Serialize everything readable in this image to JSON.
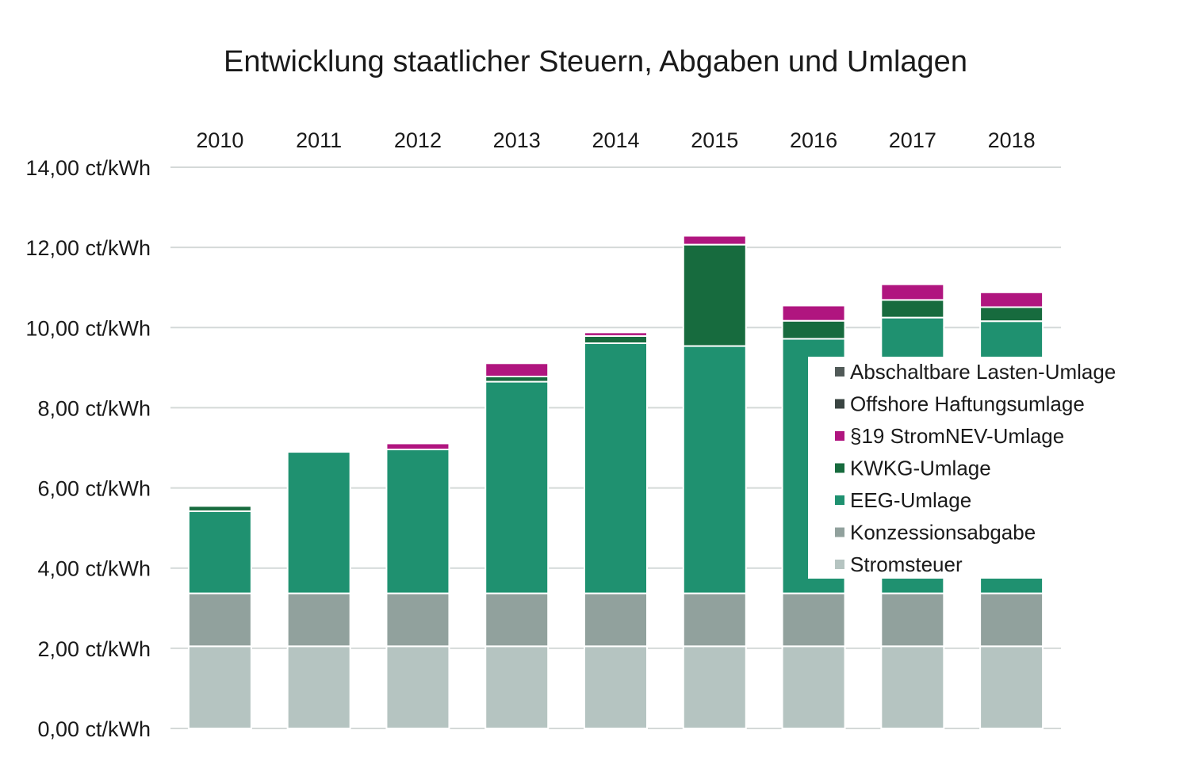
{
  "chart_data": {
    "type": "bar",
    "stacked": true,
    "title": "Entwicklung staatlicher Steuern, Abgaben und Umlagen",
    "xlabel": "",
    "ylabel": "",
    "x_axis_position": "top",
    "categories": [
      "2010",
      "2011",
      "2012",
      "2013",
      "2014",
      "2015",
      "2016",
      "2017",
      "2018"
    ],
    "ylim": [
      0,
      14
    ],
    "y_ticks": [
      0,
      2,
      4,
      6,
      8,
      10,
      12,
      14
    ],
    "y_tick_labels": [
      "0,00 ct/kWh",
      "2,00 ct/kWh",
      "4,00 ct/kWh",
      "6,00 ct/kWh",
      "8,00 ct/kWh",
      "10,00 ct/kWh",
      "12,00 ct/kWh",
      "14,00 ct/kWh"
    ],
    "grid": true,
    "legend_position": "right",
    "series": [
      {
        "name": "Stromsteuer",
        "color": "#b5c4c1",
        "values": [
          2.05,
          2.05,
          2.05,
          2.05,
          2.05,
          2.05,
          2.05,
          2.05,
          2.05
        ]
      },
      {
        "name": "Konzessionsabgabe",
        "color": "#91a19d",
        "values": [
          1.32,
          1.32,
          1.32,
          1.32,
          1.32,
          1.32,
          1.32,
          1.32,
          1.32
        ]
      },
      {
        "name": "EEG-Umlage",
        "color": "#1f9170",
        "values": [
          2.05,
          3.53,
          3.59,
          5.28,
          6.24,
          6.17,
          6.35,
          6.88,
          6.79
        ]
      },
      {
        "name": "KWKG-Umlage",
        "color": "#176b3e",
        "values": [
          0.13,
          0.03,
          0.0,
          0.13,
          0.18,
          2.53,
          0.45,
          0.44,
          0.35
        ]
      },
      {
        "name": "§19 StromNEV-Umlage",
        "color": "#b0157f",
        "values": [
          0.0,
          0.0,
          0.15,
          0.33,
          0.09,
          0.22,
          0.38,
          0.39,
          0.37
        ]
      },
      {
        "name": "Offshore Haftungsumlage",
        "color": "#3a4542",
        "values": [
          0,
          0,
          0,
          0,
          0,
          0,
          0,
          0,
          0
        ]
      },
      {
        "name": "Abschaltbare Lasten-Umlage",
        "color": "#515a58",
        "values": [
          0,
          0,
          0,
          0,
          0,
          0,
          0,
          0,
          0
        ]
      }
    ],
    "legend_order": [
      "Abschaltbare Lasten-Umlage",
      "Offshore Haftungsumlage",
      "§19 StromNEV-Umlage",
      "KWKG-Umlage",
      "EEG-Umlage",
      "Konzessionsabgabe",
      "Stromsteuer"
    ]
  }
}
